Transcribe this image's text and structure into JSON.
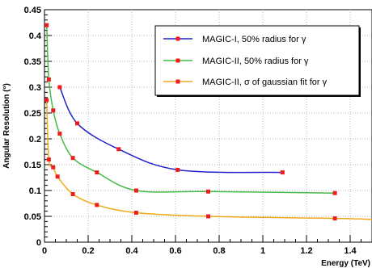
{
  "chart_data": {
    "type": "line",
    "title": "",
    "xlabel": "Energy (TeV)",
    "ylabel": "Angular Resolution (°)",
    "xlim": [
      0,
      1.5
    ],
    "ylim": [
      0,
      0.45
    ],
    "x_ticks": [
      "0",
      "0.2",
      "0.4",
      "0.6",
      "0.8",
      "1",
      "1.2",
      "1.4"
    ],
    "y_ticks": [
      "0",
      "0.05",
      "0.1",
      "0.15",
      "0.2",
      "0.25",
      "0.3",
      "0.35",
      "0.4",
      "0.45"
    ],
    "grid": true,
    "legend_position": "top-right",
    "series": [
      {
        "name": "MAGIC-I, 50% radius for γ",
        "color": "#2222cc",
        "marker_color": "#ee1c1c",
        "x": [
          0.07,
          0.15,
          0.34,
          0.61,
          1.09
        ],
        "y": [
          0.3,
          0.23,
          0.18,
          0.14,
          0.135
        ]
      },
      {
        "name": "MAGIC-II, 50% radius for γ",
        "color": "#44bb44",
        "marker_color": "#ee1c1c",
        "x": [
          0.01,
          0.02,
          0.04,
          0.07,
          0.13,
          0.24,
          0.42,
          0.75,
          1.33
        ],
        "y": [
          0.42,
          0.315,
          0.255,
          0.21,
          0.163,
          0.135,
          0.1,
          0.098,
          0.095
        ]
      },
      {
        "name": "MAGIC-II, σ of gaussian fit for γ",
        "color": "#f2a818",
        "marker_color": "#ee1c1c",
        "x": [
          0.01,
          0.02,
          0.04,
          0.06,
          0.13,
          0.24,
          0.42,
          0.75,
          1.33,
          1.5
        ],
        "y": [
          0.275,
          0.16,
          0.145,
          0.127,
          0.093,
          0.072,
          0.057,
          0.05,
          0.046,
          0.044
        ]
      }
    ]
  }
}
